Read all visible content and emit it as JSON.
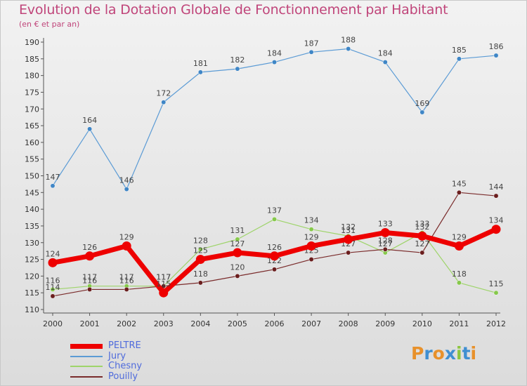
{
  "title": "Evolution de la Dotation Globale de Fonctionnement par Habitant",
  "subtitle": "(en € et par an)",
  "logo": {
    "text": "Proxiti",
    "colors": [
      "#e8912b",
      "#3f8fd1",
      "#e8912b",
      "#3f8fd1",
      "#8cc63f",
      "#3f8fd1",
      "#e8912b"
    ]
  },
  "chart_data": {
    "type": "line",
    "x": [
      "2000",
      "2001",
      "2002",
      "2003",
      "2004",
      "2005",
      "2006",
      "2007",
      "2008",
      "2009",
      "2010",
      "2011",
      "2012"
    ],
    "ylim": [
      110,
      190
    ],
    "yticks": [
      110,
      115,
      120,
      125,
      130,
      135,
      140,
      145,
      150,
      155,
      160,
      165,
      170,
      175,
      180,
      185,
      190
    ],
    "grid": false,
    "legend_position": "bottom-left",
    "series": [
      {
        "name": "Jury",
        "color": "#5b9bd5",
        "marker": "#3f86c6",
        "width": 1.2,
        "values": [
          147,
          164,
          146,
          172,
          181,
          182,
          184,
          187,
          188,
          184,
          169,
          185,
          186
        ]
      },
      {
        "name": "Chesny",
        "color": "#9ed46a",
        "marker": "#86c84b",
        "width": 1.2,
        "values": [
          116,
          117,
          117,
          117,
          128,
          131,
          137,
          134,
          132,
          127,
          133,
          118,
          115
        ]
      },
      {
        "name": "Pouilly",
        "color": "#7a2b2b",
        "marker": "#6a1e1e",
        "width": 1.2,
        "values": [
          114,
          116,
          116,
          117,
          118,
          120,
          122,
          125,
          127,
          128,
          127,
          145,
          144
        ]
      },
      {
        "name": "PELTRE",
        "color": "#ee0000",
        "marker": "#ee0000",
        "width": 7,
        "values": [
          124,
          126,
          129,
          115,
          125,
          127,
          126,
          129,
          131,
          133,
          132,
          129,
          134
        ]
      }
    ],
    "legend_order": [
      "PELTRE",
      "Jury",
      "Chesny",
      "Pouilly"
    ]
  }
}
